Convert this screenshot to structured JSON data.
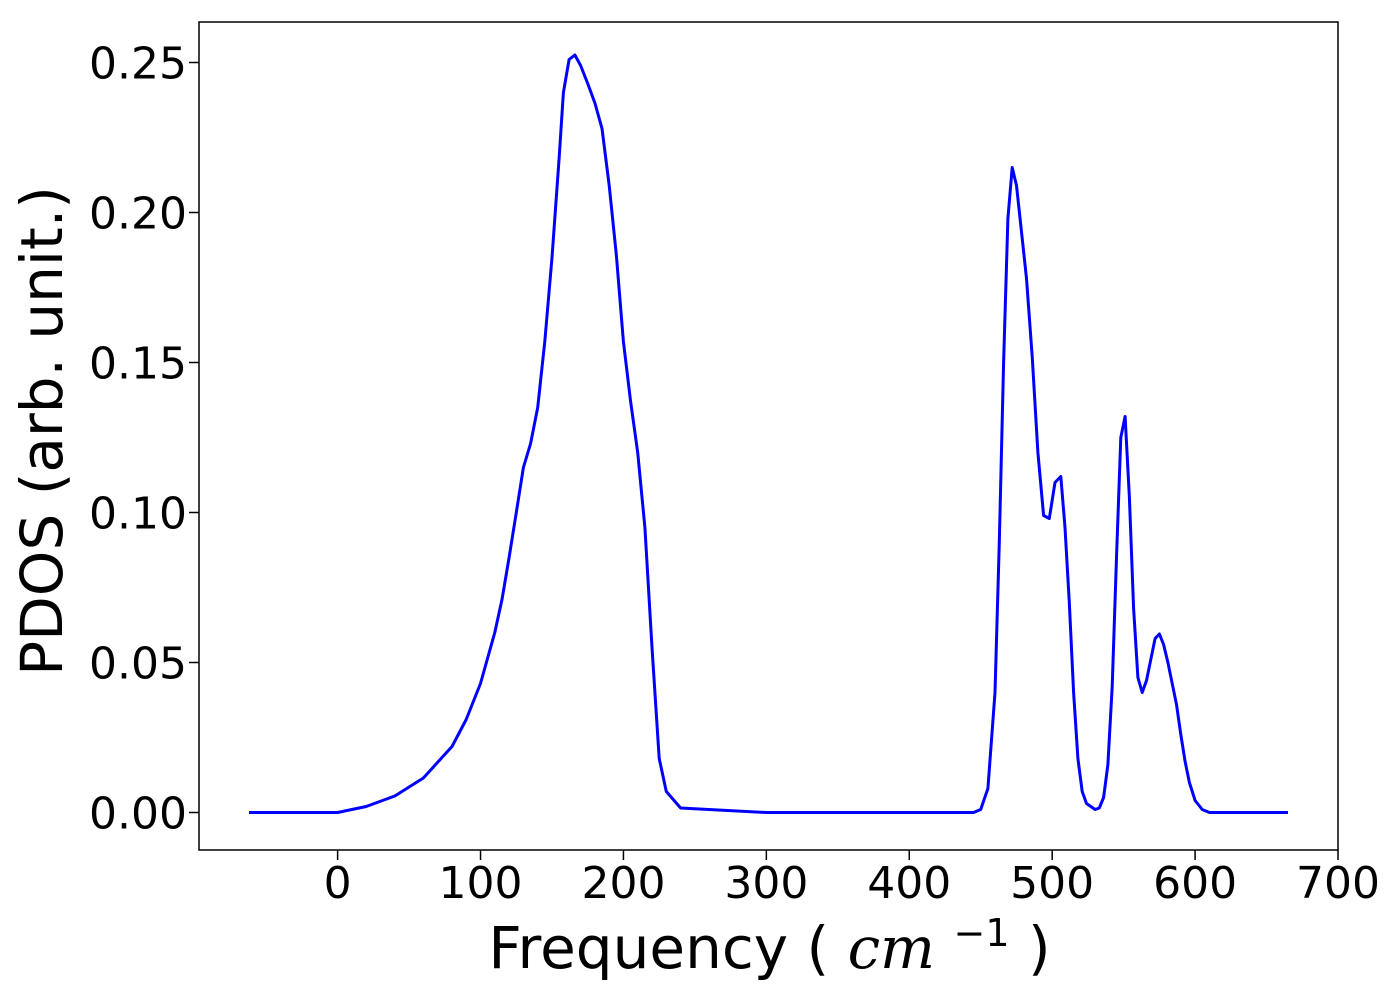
{
  "chart_data": {
    "type": "line",
    "title": "",
    "xlabel": "Frequency",
    "xlabel_unit_base": "cm",
    "xlabel_unit_exp": "−1",
    "ylabel": "PDOS (arb. unit.)",
    "xlim": [
      -97,
      700
    ],
    "ylim": [
      -0.0125,
      0.2635
    ],
    "xticks": [
      0,
      100,
      200,
      300,
      400,
      500,
      600,
      700
    ],
    "xtick_labels": [
      "0",
      "100",
      "200",
      "300",
      "400",
      "500",
      "600",
      "700"
    ],
    "yticks": [
      0,
      0.05,
      0.1,
      0.15,
      0.2,
      0.25
    ],
    "ytick_labels": [
      "0.00",
      "0.05",
      "0.10",
      "0.15",
      "0.20",
      "0.25"
    ],
    "grid": false,
    "legend": "none",
    "series": [
      {
        "color": "#0000ff",
        "x": [
          -62,
          -20,
          0,
          20,
          40,
          60,
          80,
          90,
          100,
          110,
          115,
          120,
          125,
          130,
          135,
          140,
          145,
          150,
          155,
          158,
          162,
          166,
          170,
          175,
          180,
          185,
          190,
          195,
          200,
          205,
          210,
          215,
          220,
          225,
          230,
          240,
          300,
          400,
          445,
          450,
          455,
          460,
          463,
          466,
          469,
          472,
          475,
          478,
          482,
          486,
          490,
          494,
          498,
          502,
          506,
          509,
          512,
          515,
          518,
          521,
          524,
          527,
          530,
          533,
          536,
          539,
          542,
          545,
          548,
          551,
          554,
          557,
          560,
          563,
          566,
          569,
          572,
          575,
          578,
          581,
          584,
          587,
          590,
          593,
          596,
          600,
          605,
          610,
          615,
          620,
          625,
          630,
          660,
          665
        ],
        "y": [
          0,
          0,
          0,
          0.002,
          0.0055,
          0.0115,
          0.022,
          0.031,
          0.043,
          0.06,
          0.071,
          0.085,
          0.1,
          0.115,
          0.123,
          0.135,
          0.157,
          0.185,
          0.218,
          0.24,
          0.251,
          0.2525,
          0.249,
          0.243,
          0.2365,
          0.228,
          0.209,
          0.186,
          0.157,
          0.137,
          0.12,
          0.095,
          0.055,
          0.018,
          0.007,
          0.0015,
          0,
          0,
          0,
          0.001,
          0.008,
          0.04,
          0.09,
          0.15,
          0.198,
          0.215,
          0.209,
          0.196,
          0.178,
          0.152,
          0.12,
          0.099,
          0.098,
          0.11,
          0.112,
          0.095,
          0.07,
          0.04,
          0.018,
          0.007,
          0.003,
          0.002,
          0.001,
          0.0015,
          0.005,
          0.016,
          0.042,
          0.085,
          0.125,
          0.132,
          0.105,
          0.068,
          0.045,
          0.04,
          0.044,
          0.051,
          0.058,
          0.0595,
          0.056,
          0.05,
          0.043,
          0.036,
          0.026,
          0.017,
          0.01,
          0.004,
          0.001,
          0,
          0,
          0,
          0,
          0,
          0,
          0
        ]
      }
    ]
  }
}
